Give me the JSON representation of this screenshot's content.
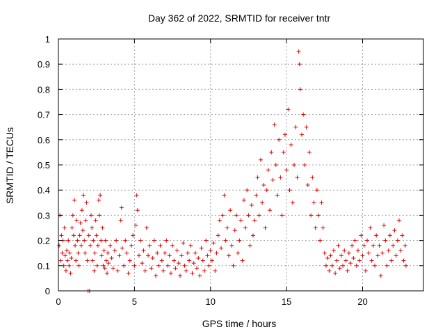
{
  "chart_data": {
    "type": "scatter",
    "title": "Day 362 of 2022, SRMTID for receiver tntr",
    "xlabel": "GPS time / hours",
    "ylabel": "SRMTID / TECUs",
    "xlim": [
      0,
      24
    ],
    "ylim": [
      0,
      1
    ],
    "xticks": [
      0,
      5,
      10,
      15,
      20
    ],
    "yticks": [
      0,
      0.1,
      0.2,
      0.3,
      0.4,
      0.5,
      0.6,
      0.7,
      0.8,
      0.9,
      1
    ],
    "grid": true,
    "marker": "+",
    "color": "#e00000",
    "series": [
      {
        "name": "SRMTID",
        "points": [
          [
            0.05,
            0.18
          ],
          [
            0.1,
            0.3
          ],
          [
            0.15,
            0.12
          ],
          [
            0.2,
            0.22
          ],
          [
            0.25,
            0.15
          ],
          [
            0.3,
            0.2
          ],
          [
            0.35,
            0.1
          ],
          [
            0.4,
            0.25
          ],
          [
            0.45,
            0.14
          ],
          [
            0.5,
            0.08
          ],
          [
            0.55,
            0.16
          ],
          [
            0.6,
            0.12
          ],
          [
            0.65,
            0.2
          ],
          [
            0.7,
            0.1
          ],
          [
            0.75,
            0.15
          ],
          [
            0.8,
            0.07
          ],
          [
            0.85,
            0.13
          ],
          [
            0.9,
            0.25
          ],
          [
            0.95,
            0.3
          ],
          [
            1.0,
            0.22
          ],
          [
            1.05,
            0.36
          ],
          [
            1.1,
            0.18
          ],
          [
            1.15,
            0.12
          ],
          [
            1.2,
            0.28
          ],
          [
            1.25,
            0.2
          ],
          [
            1.3,
            0.15
          ],
          [
            1.35,
            0.1
          ],
          [
            1.4,
            0.22
          ],
          [
            1.45,
            0.27
          ],
          [
            1.5,
            0.18
          ],
          [
            1.55,
            0.32
          ],
          [
            1.6,
            0.24
          ],
          [
            1.65,
            0.38
          ],
          [
            1.7,
            0.2
          ],
          [
            1.75,
            0.15
          ],
          [
            1.8,
            0.28
          ],
          [
            1.85,
            0.35
          ],
          [
            1.9,
            0.12
          ],
          [
            1.95,
            0.0
          ],
          [
            2.0,
            0.22
          ],
          [
            2.05,
            0.0
          ],
          [
            2.1,
            0.18
          ],
          [
            2.15,
            0.3
          ],
          [
            2.2,
            0.25
          ],
          [
            2.25,
            0.12
          ],
          [
            2.3,
            0.2
          ],
          [
            2.35,
            0.08
          ],
          [
            2.4,
            0.15
          ],
          [
            2.45,
            0.28
          ],
          [
            2.5,
            0.22
          ],
          [
            2.55,
            0.1
          ],
          [
            2.6,
            0.18
          ],
          [
            2.65,
            0.36
          ],
          [
            2.7,
            0.3
          ],
          [
            2.75,
            0.38
          ],
          [
            2.8,
            0.2
          ],
          [
            2.85,
            0.14
          ],
          [
            2.9,
            0.25
          ],
          [
            2.95,
            0.1
          ],
          [
            3.0,
            0.16
          ],
          [
            3.05,
            0.09
          ],
          [
            3.1,
            0.2
          ],
          [
            3.15,
            0.12
          ],
          [
            3.2,
            0.07
          ],
          [
            3.25,
            0.15
          ],
          [
            3.3,
            0.11
          ],
          [
            3.4,
            0.18
          ],
          [
            3.5,
            0.13
          ],
          [
            3.6,
            0.09
          ],
          [
            3.7,
            0.16
          ],
          [
            3.8,
            0.2
          ],
          [
            3.9,
            0.08
          ],
          [
            4.0,
            0.14
          ],
          [
            4.1,
            0.28
          ],
          [
            4.15,
            0.33
          ],
          [
            4.2,
            0.17
          ],
          [
            4.3,
            0.1
          ],
          [
            4.4,
            0.2
          ],
          [
            4.5,
            0.15
          ],
          [
            4.6,
            0.07
          ],
          [
            4.7,
            0.12
          ],
          [
            4.8,
            0.18
          ],
          [
            4.9,
            0.22
          ],
          [
            5.0,
            0.1
          ],
          [
            5.1,
            0.26
          ],
          [
            5.15,
            0.38
          ],
          [
            5.2,
            0.32
          ],
          [
            5.3,
            0.14
          ],
          [
            5.4,
            0.2
          ],
          [
            5.5,
            0.11
          ],
          [
            5.6,
            0.16
          ],
          [
            5.7,
            0.08
          ],
          [
            5.8,
            0.25
          ],
          [
            5.9,
            0.14
          ],
          [
            6.0,
            0.18
          ],
          [
            6.1,
            0.09
          ],
          [
            6.2,
            0.13
          ],
          [
            6.3,
            0.2
          ],
          [
            6.4,
            0.06
          ],
          [
            6.5,
            0.15
          ],
          [
            6.6,
            0.1
          ],
          [
            6.7,
            0.18
          ],
          [
            6.8,
            0.12
          ],
          [
            6.9,
            0.08
          ],
          [
            7.0,
            0.15
          ],
          [
            7.1,
            0.2
          ],
          [
            7.2,
            0.1
          ],
          [
            7.3,
            0.14
          ],
          [
            7.4,
            0.07
          ],
          [
            7.5,
            0.18
          ],
          [
            7.6,
            0.12
          ],
          [
            7.7,
            0.09
          ],
          [
            7.8,
            0.16
          ],
          [
            7.9,
            0.11
          ],
          [
            8.0,
            0.06
          ],
          [
            8.1,
            0.14
          ],
          [
            8.2,
            0.19
          ],
          [
            8.3,
            0.1
          ],
          [
            8.4,
            0.08
          ],
          [
            8.5,
            0.15
          ],
          [
            8.6,
            0.12
          ],
          [
            8.7,
            0.18
          ],
          [
            8.8,
            0.07
          ],
          [
            8.9,
            0.11
          ],
          [
            9.0,
            0.15
          ],
          [
            9.1,
            0.09
          ],
          [
            9.2,
            0.13
          ],
          [
            9.3,
            0.06
          ],
          [
            9.4,
            0.17
          ],
          [
            9.5,
            0.12
          ],
          [
            9.6,
            0.08
          ],
          [
            9.7,
            0.2
          ],
          [
            9.8,
            0.14
          ],
          [
            9.9,
            0.1
          ],
          [
            10.0,
            0.16
          ],
          [
            10.1,
            0.12
          ],
          [
            10.2,
            0.19
          ],
          [
            10.3,
            0.08
          ],
          [
            10.4,
            0.15
          ],
          [
            10.5,
            0.22
          ],
          [
            10.6,
            0.28
          ],
          [
            10.7,
            0.17
          ],
          [
            10.8,
            0.3
          ],
          [
            10.9,
            0.38
          ],
          [
            11.0,
            0.2
          ],
          [
            11.1,
            0.25
          ],
          [
            11.2,
            0.14
          ],
          [
            11.3,
            0.32
          ],
          [
            11.4,
            0.18
          ],
          [
            11.5,
            0.1
          ],
          [
            11.6,
            0.24
          ],
          [
            11.7,
            0.3
          ],
          [
            11.8,
            0.15
          ],
          [
            11.9,
            0.2
          ],
          [
            12.0,
            0.28
          ],
          [
            12.1,
            0.12
          ],
          [
            12.2,
            0.36
          ],
          [
            12.3,
            0.25
          ],
          [
            12.4,
            0.4
          ],
          [
            12.5,
            0.3
          ],
          [
            12.6,
            0.18
          ],
          [
            12.7,
            0.34
          ],
          [
            12.8,
            0.22
          ],
          [
            12.9,
            0.28
          ],
          [
            13.0,
            0.38
          ],
          [
            13.1,
            0.45
          ],
          [
            13.2,
            0.3
          ],
          [
            13.3,
            0.52
          ],
          [
            13.4,
            0.35
          ],
          [
            13.5,
            0.42
          ],
          [
            13.6,
            0.25
          ],
          [
            13.7,
            0.4
          ],
          [
            13.8,
            0.48
          ],
          [
            13.9,
            0.32
          ],
          [
            14.0,
            0.55
          ],
          [
            14.1,
            0.44
          ],
          [
            14.2,
            0.66
          ],
          [
            14.3,
            0.5
          ],
          [
            14.4,
            0.38
          ],
          [
            14.5,
            0.6
          ],
          [
            14.6,
            0.45
          ],
          [
            14.7,
            0.3
          ],
          [
            14.8,
            0.55
          ],
          [
            14.9,
            0.62
          ],
          [
            15.0,
            0.48
          ],
          [
            15.1,
            0.72
          ],
          [
            15.2,
            0.4
          ],
          [
            15.3,
            0.58
          ],
          [
            15.4,
            0.35
          ],
          [
            15.5,
            0.5
          ],
          [
            15.6,
            0.65
          ],
          [
            15.7,
            0.45
          ],
          [
            15.8,
            0.95
          ],
          [
            15.85,
            0.9
          ],
          [
            15.9,
            0.8
          ],
          [
            16.0,
            0.62
          ],
          [
            16.1,
            0.7
          ],
          [
            16.2,
            0.5
          ],
          [
            16.3,
            0.65
          ],
          [
            16.4,
            0.42
          ],
          [
            16.5,
            0.55
          ],
          [
            16.6,
            0.3
          ],
          [
            16.7,
            0.45
          ],
          [
            16.8,
            0.35
          ],
          [
            16.9,
            0.25
          ],
          [
            17.0,
            0.4
          ],
          [
            17.1,
            0.3
          ],
          [
            17.2,
            0.2
          ],
          [
            17.3,
            0.35
          ],
          [
            17.4,
            0.25
          ],
          [
            17.5,
            0.15
          ],
          [
            17.6,
            0.1
          ],
          [
            17.7,
            0.13
          ],
          [
            17.8,
            0.08
          ],
          [
            17.9,
            0.14
          ],
          [
            18.0,
            0.1
          ],
          [
            18.1,
            0.16
          ],
          [
            18.2,
            0.07
          ],
          [
            18.3,
            0.12
          ],
          [
            18.4,
            0.18
          ],
          [
            18.5,
            0.09
          ],
          [
            18.6,
            0.14
          ],
          [
            18.7,
            0.1
          ],
          [
            18.8,
            0.16
          ],
          [
            18.9,
            0.12
          ],
          [
            19.0,
            0.08
          ],
          [
            19.1,
            0.15
          ],
          [
            19.2,
            0.11
          ],
          [
            19.3,
            0.18
          ],
          [
            19.4,
            0.13
          ],
          [
            19.5,
            0.2
          ],
          [
            19.6,
            0.1
          ],
          [
            19.7,
            0.16
          ],
          [
            19.8,
            0.12
          ],
          [
            19.9,
            0.22
          ],
          [
            20.0,
            0.14
          ],
          [
            20.1,
            0.18
          ],
          [
            20.2,
            0.08
          ],
          [
            20.3,
            0.2
          ],
          [
            20.4,
            0.15
          ],
          [
            20.5,
            0.25
          ],
          [
            20.6,
            0.12
          ],
          [
            20.7,
            0.18
          ],
          [
            20.8,
            0.1
          ],
          [
            20.9,
            0.22
          ],
          [
            21.0,
            0.14
          ],
          [
            21.1,
            0.18
          ],
          [
            21.2,
            0.06
          ],
          [
            21.3,
            0.15
          ],
          [
            21.4,
            0.26
          ],
          [
            21.5,
            0.2
          ],
          [
            21.6,
            0.1
          ],
          [
            21.7,
            0.16
          ],
          [
            21.8,
            0.22
          ],
          [
            21.9,
            0.12
          ],
          [
            22.0,
            0.18
          ],
          [
            22.1,
            0.24
          ],
          [
            22.2,
            0.14
          ],
          [
            22.3,
            0.2
          ],
          [
            22.4,
            0.28
          ],
          [
            22.5,
            0.16
          ],
          [
            22.6,
            0.22
          ],
          [
            22.7,
            0.12
          ],
          [
            22.8,
            0.18
          ],
          [
            22.85,
            0.1
          ]
        ]
      }
    ]
  }
}
